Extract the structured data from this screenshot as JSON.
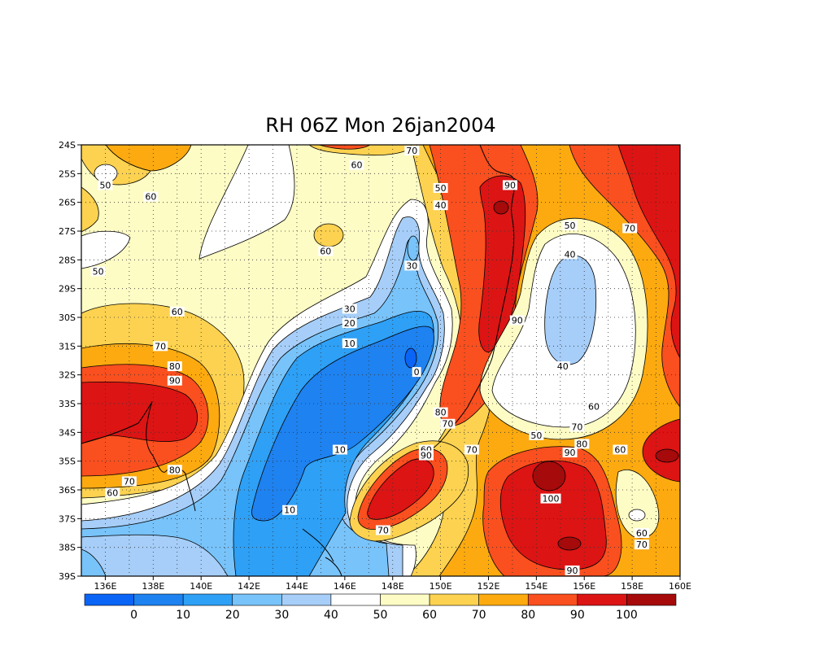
{
  "title": "RH 06Z Mon 26jan2004",
  "map": {
    "y_tick_labels": [
      "24S",
      "25S",
      "26S",
      "27S",
      "28S",
      "29S",
      "30S",
      "31S",
      "32S",
      "33S",
      "34S",
      "35S",
      "36S",
      "37S",
      "38S",
      "39S"
    ],
    "x_tick_labels": [
      "136E",
      "138E",
      "140E",
      "142E",
      "144E",
      "146E",
      "148E",
      "150E",
      "152E",
      "154E",
      "156E",
      "158E",
      "160E"
    ],
    "lon_range": [
      135,
      160
    ],
    "lat_range": [
      -39,
      -24
    ],
    "grid": "dotted",
    "contour_interval": 10,
    "contour_labels": [
      {
        "text": "70",
        "lon": 148.8,
        "lat": -24.2
      },
      {
        "text": "60",
        "lon": 146.5,
        "lat": -24.7
      },
      {
        "text": "50",
        "lon": 136.0,
        "lat": -25.4
      },
      {
        "text": "60",
        "lon": 137.9,
        "lat": -25.8
      },
      {
        "text": "50",
        "lon": 150.0,
        "lat": -25.5
      },
      {
        "text": "40",
        "lon": 150.0,
        "lat": -26.1
      },
      {
        "text": "90",
        "lon": 152.9,
        "lat": -25.4
      },
      {
        "text": "50",
        "lon": 155.4,
        "lat": -26.8
      },
      {
        "text": "70",
        "lon": 157.9,
        "lat": -26.9
      },
      {
        "text": "60",
        "lon": 145.2,
        "lat": -27.7
      },
      {
        "text": "30",
        "lon": 148.8,
        "lat": -28.2
      },
      {
        "text": "40",
        "lon": 155.4,
        "lat": -27.8
      },
      {
        "text": "50",
        "lon": 135.7,
        "lat": -28.4
      },
      {
        "text": "30",
        "lon": 146.2,
        "lat": -29.7
      },
      {
        "text": "60",
        "lon": 139.0,
        "lat": -29.8
      },
      {
        "text": "90",
        "lon": 153.2,
        "lat": -30.1
      },
      {
        "text": "20",
        "lon": 146.2,
        "lat": -30.2
      },
      {
        "text": "70",
        "lon": 138.3,
        "lat": -31.0
      },
      {
        "text": "10",
        "lon": 146.2,
        "lat": -30.9
      },
      {
        "text": "80",
        "lon": 138.9,
        "lat": -31.7
      },
      {
        "text": "40",
        "lon": 155.1,
        "lat": -31.7
      },
      {
        "text": "90",
        "lon": 138.9,
        "lat": -32.2
      },
      {
        "text": "0",
        "lon": 149.0,
        "lat": -31.9
      },
      {
        "text": "80",
        "lon": 150.0,
        "lat": -33.3
      },
      {
        "text": "70",
        "lon": 150.3,
        "lat": -33.7
      },
      {
        "text": "60",
        "lon": 156.4,
        "lat": -33.1
      },
      {
        "text": "70",
        "lon": 155.7,
        "lat": -33.8
      },
      {
        "text": "50",
        "lon": 154.0,
        "lat": -34.1
      },
      {
        "text": "10",
        "lon": 145.8,
        "lat": -34.6
      },
      {
        "text": "60",
        "lon": 149.4,
        "lat": -34.6
      },
      {
        "text": "70",
        "lon": 151.3,
        "lat": -34.6
      },
      {
        "text": "90",
        "lon": 149.4,
        "lat": -34.8
      },
      {
        "text": "80",
        "lon": 155.9,
        "lat": -34.4
      },
      {
        "text": "90",
        "lon": 155.4,
        "lat": -34.7
      },
      {
        "text": "60",
        "lon": 157.5,
        "lat": -34.6
      },
      {
        "text": "70",
        "lon": 137.0,
        "lat": -35.7
      },
      {
        "text": "80",
        "lon": 138.9,
        "lat": -35.3
      },
      {
        "text": "60",
        "lon": 136.3,
        "lat": -36.1
      },
      {
        "text": "100",
        "lon": 154.6,
        "lat": -36.3
      },
      {
        "text": "10",
        "lon": 143.7,
        "lat": -36.7
      },
      {
        "text": "70",
        "lon": 147.6,
        "lat": -37.4
      },
      {
        "text": "60",
        "lon": 158.4,
        "lat": -37.5
      },
      {
        "text": "70",
        "lon": 158.4,
        "lat": -37.9
      },
      {
        "text": "90",
        "lon": 155.5,
        "lat": -38.8
      }
    ]
  },
  "colorbar": {
    "labels": [
      "0",
      "10",
      "20",
      "30",
      "40",
      "50",
      "60",
      "70",
      "80",
      "90",
      "100"
    ],
    "colors": [
      "#0a64f5",
      "#1e82f0",
      "#2ea0f5",
      "#78c3fa",
      "#a6cef8",
      "#ffffff",
      "#fefcc5",
      "#fcd250",
      "#fcaa0f",
      "#fa4f1e",
      "#dc1414",
      "#a60a0a"
    ]
  }
}
